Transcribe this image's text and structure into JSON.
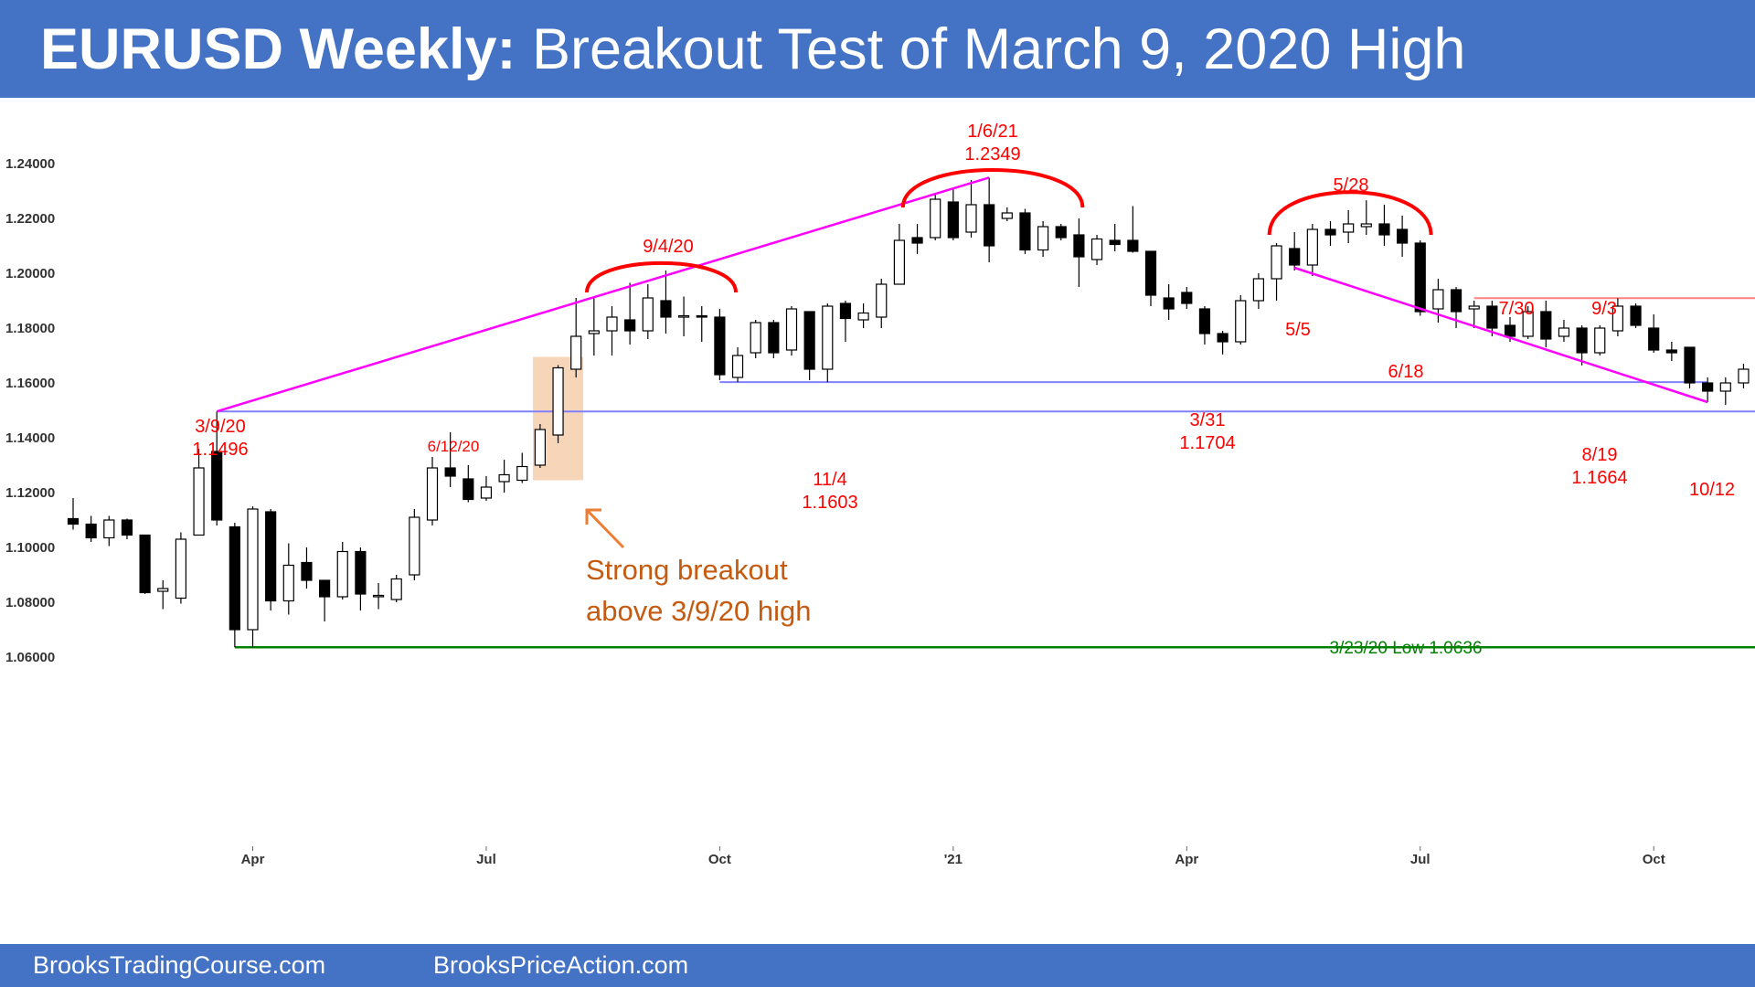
{
  "header": {
    "title_bold": "EURUSD Weekly:",
    "title_rest": "Breakout Test of March 9, 2020 High"
  },
  "footer": {
    "left": "BrooksTradingCourse.com",
    "right": "BrooksPriceAction.com"
  },
  "colors": {
    "banner": "#4472c4",
    "annotation_red": "#ff0000",
    "trendline_magenta": "#ff00ff",
    "support_blue": "#8080ff",
    "low_green": "#008000",
    "resistance_pink": "#ff8080",
    "breakout_orange": "#c55a11",
    "highlight": "#f4c7a1"
  },
  "chart_data": {
    "type": "candlestick",
    "timeframe": "Weekly",
    "ylim": [
      1.055,
      1.257
    ],
    "yticks": [
      "1.24000",
      "1.22000",
      "1.20000",
      "1.18000",
      "1.16000",
      "1.14000",
      "1.12000",
      "1.10000",
      "1.08000",
      "1.06000"
    ],
    "ytick_values": [
      1.24,
      1.22,
      1.2,
      1.18,
      1.16,
      1.14,
      1.12,
      1.1,
      1.08,
      1.06
    ],
    "xticks": [
      {
        "label": "Apr",
        "week": 10
      },
      {
        "label": "Jul",
        "week": 23
      },
      {
        "label": "Oct",
        "week": 36
      },
      {
        "label": "'21",
        "week": 49
      },
      {
        "label": "Apr",
        "week": 62
      },
      {
        "label": "Jul",
        "week": 75
      },
      {
        "label": "Oct",
        "week": 88
      }
    ],
    "candles": [
      [
        1.1105,
        1.1085,
        1.118,
        1.1065
      ],
      [
        1.1085,
        1.1035,
        1.1115,
        1.102
      ],
      [
        1.1035,
        1.11,
        1.1115,
        1.1005
      ],
      [
        1.11,
        1.1045,
        1.1105,
        1.103
      ],
      [
        1.1045,
        1.0835,
        1.1045,
        1.083
      ],
      [
        1.084,
        1.085,
        1.088,
        1.0775
      ],
      [
        1.0815,
        1.103,
        1.1055,
        1.0795
      ],
      [
        1.1045,
        1.129,
        1.136,
        1.1045
      ],
      [
        1.135,
        1.11,
        1.1496,
        1.108
      ],
      [
        1.1075,
        1.07,
        1.109,
        1.0636
      ],
      [
        1.07,
        1.114,
        1.115,
        1.0636
      ],
      [
        1.113,
        1.0805,
        1.114,
        1.077
      ],
      [
        1.0805,
        1.0935,
        1.1015,
        1.0755
      ],
      [
        1.0945,
        1.088,
        1.1,
        1.085
      ],
      [
        1.088,
        1.082,
        1.0875,
        1.073
      ],
      [
        1.082,
        1.0985,
        1.102,
        1.081
      ],
      [
        1.0985,
        1.083,
        1.1,
        1.077
      ],
      [
        1.082,
        1.0825,
        1.087,
        1.0775
      ],
      [
        1.081,
        1.0885,
        1.09,
        1.08
      ],
      [
        1.09,
        1.111,
        1.114,
        1.088
      ],
      [
        1.11,
        1.129,
        1.133,
        1.108
      ],
      [
        1.129,
        1.126,
        1.142,
        1.122
      ],
      [
        1.125,
        1.1175,
        1.13,
        1.1165
      ],
      [
        1.118,
        1.122,
        1.126,
        1.117
      ],
      [
        1.124,
        1.1265,
        1.132,
        1.12
      ],
      [
        1.1245,
        1.1295,
        1.1345,
        1.1235
      ],
      [
        1.13,
        1.143,
        1.145,
        1.129
      ],
      [
        1.141,
        1.1655,
        1.1665,
        1.138
      ],
      [
        1.165,
        1.177,
        1.191,
        1.162
      ],
      [
        1.178,
        1.179,
        1.191,
        1.17
      ],
      [
        1.179,
        1.184,
        1.188,
        1.17
      ],
      [
        1.183,
        1.179,
        1.1965,
        1.174
      ],
      [
        1.179,
        1.191,
        1.196,
        1.176
      ],
      [
        1.19,
        1.184,
        1.201,
        1.178
      ],
      [
        1.184,
        1.1845,
        1.1915,
        1.177
      ],
      [
        1.1845,
        1.184,
        1.188,
        1.175
      ],
      [
        1.184,
        1.163,
        1.187,
        1.161
      ],
      [
        1.162,
        1.17,
        1.173,
        1.1603
      ],
      [
        1.171,
        1.182,
        1.183,
        1.169
      ],
      [
        1.182,
        1.171,
        1.183,
        1.169
      ],
      [
        1.172,
        1.187,
        1.188,
        1.17
      ],
      [
        1.186,
        1.165,
        1.186,
        1.161
      ],
      [
        1.165,
        1.188,
        1.189,
        1.1603
      ],
      [
        1.189,
        1.1835,
        1.19,
        1.175
      ],
      [
        1.183,
        1.1855,
        1.189,
        1.18
      ],
      [
        1.184,
        1.196,
        1.198,
        1.18
      ],
      [
        1.196,
        1.212,
        1.218,
        1.196
      ],
      [
        1.213,
        1.211,
        1.218,
        1.207
      ],
      [
        1.213,
        1.227,
        1.229,
        1.212
      ],
      [
        1.226,
        1.213,
        1.231,
        1.212
      ],
      [
        1.215,
        1.225,
        1.234,
        1.213
      ],
      [
        1.225,
        1.21,
        1.2349,
        1.204
      ],
      [
        1.22,
        1.222,
        1.224,
        1.219
      ],
      [
        1.222,
        1.2085,
        1.2235,
        1.207
      ],
      [
        1.2085,
        1.217,
        1.219,
        1.206
      ],
      [
        1.217,
        1.213,
        1.218,
        1.212
      ],
      [
        1.214,
        1.206,
        1.22,
        1.195
      ],
      [
        1.205,
        1.2125,
        1.214,
        1.203
      ],
      [
        1.212,
        1.2105,
        1.218,
        1.208
      ],
      [
        1.212,
        1.208,
        1.2245,
        1.2075
      ],
      [
        1.208,
        1.192,
        1.208,
        1.188
      ],
      [
        1.191,
        1.187,
        1.196,
        1.183
      ],
      [
        1.193,
        1.189,
        1.195,
        1.187
      ],
      [
        1.187,
        1.178,
        1.188,
        1.174
      ],
      [
        1.178,
        1.175,
        1.179,
        1.1704
      ],
      [
        1.175,
        1.19,
        1.192,
        1.174
      ],
      [
        1.19,
        1.198,
        1.2,
        1.187
      ],
      [
        1.198,
        1.21,
        1.211,
        1.19
      ],
      [
        1.209,
        1.203,
        1.215,
        1.201
      ],
      [
        1.203,
        1.216,
        1.218,
        1.199
      ],
      [
        1.216,
        1.214,
        1.219,
        1.21
      ],
      [
        1.215,
        1.218,
        1.223,
        1.211
      ],
      [
        1.217,
        1.218,
        1.2266,
        1.214
      ],
      [
        1.218,
        1.214,
        1.225,
        1.21
      ],
      [
        1.216,
        1.211,
        1.221,
        1.206
      ],
      [
        1.211,
        1.186,
        1.212,
        1.1845
      ],
      [
        1.187,
        1.194,
        1.198,
        1.182
      ],
      [
        1.194,
        1.186,
        1.195,
        1.18
      ],
      [
        1.187,
        1.188,
        1.19,
        1.18
      ],
      [
        1.188,
        1.18,
        1.19,
        1.177
      ],
      [
        1.181,
        1.177,
        1.184,
        1.175
      ],
      [
        1.177,
        1.186,
        1.188,
        1.176
      ],
      [
        1.186,
        1.176,
        1.19,
        1.173
      ],
      [
        1.177,
        1.18,
        1.183,
        1.175
      ],
      [
        1.18,
        1.171,
        1.181,
        1.1664
      ],
      [
        1.171,
        1.18,
        1.181,
        1.17
      ],
      [
        1.179,
        1.188,
        1.1909,
        1.177
      ],
      [
        1.188,
        1.181,
        1.189,
        1.18
      ],
      [
        1.18,
        1.172,
        1.185,
        1.171
      ],
      [
        1.172,
        1.171,
        1.175,
        1.168
      ],
      [
        1.173,
        1.16,
        1.173,
        1.158
      ],
      [
        1.16,
        1.157,
        1.162,
        1.153
      ],
      [
        1.157,
        1.16,
        1.162,
        1.152
      ],
      [
        1.16,
        1.165,
        1.167,
        1.158
      ]
    ]
  },
  "annotations": {
    "high_3_9_20_date": "3/9/20",
    "high_3_9_20_price": "1.1496",
    "label_6_12_20": "6/12/20",
    "label_9_4_20": "9/4/20",
    "high_1_6_21_date": "1/6/21",
    "high_1_6_21_price": "1.2349",
    "low_11_4_date": "11/4",
    "low_11_4_price": "1.1603",
    "low_3_31_date": "3/31",
    "low_3_31_price": "1.1704",
    "label_5_28": "5/28",
    "label_5_5": "5/5",
    "label_6_18": "6/18",
    "label_7_30": "7/30",
    "label_9_3": "9/3",
    "low_8_19_date": "8/19",
    "low_8_19_price": "1.1664",
    "label_10_12": "10/12",
    "low_label": "3/23/20 Low 1.0636",
    "breakout_line1": "Strong breakout",
    "breakout_line2": "above 3/9/20 high"
  }
}
